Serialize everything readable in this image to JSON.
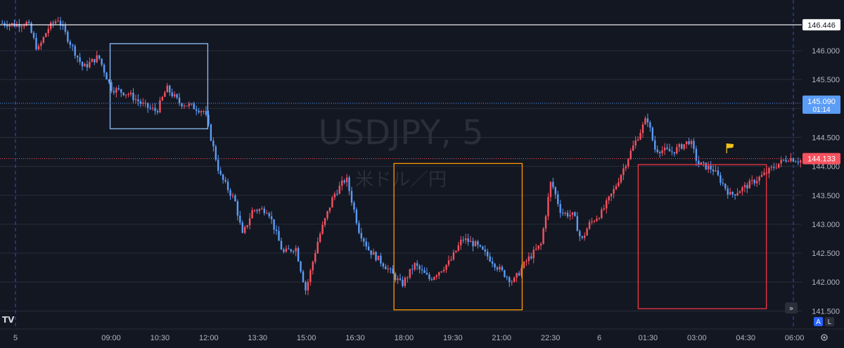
{
  "chart_data": {
    "type": "candlestick",
    "symbol": "USDJPY",
    "interval": "5",
    "subtitle": "米ドル／円",
    "y_ticks": [
      146.0,
      145.5,
      145.0,
      144.5,
      144.0,
      143.5,
      143.0,
      142.5,
      142.0,
      141.5
    ],
    "y_tick_labels": [
      "146.000",
      "145.500",
      "145.000",
      "144.500",
      "144.000",
      "143.500",
      "143.000",
      "142.500",
      "142.000",
      "141.500"
    ],
    "ylim": [
      141.45,
      146.7
    ],
    "x_tick_labels": [
      "5",
      "09:00",
      "10:30",
      "12:00",
      "13:30",
      "15:00",
      "16:30",
      "18:00",
      "19:30",
      "21:00",
      "22:30",
      "6",
      "01:30",
      "03:00",
      "04:30",
      "06:00"
    ],
    "horizontal_level": {
      "value": 146.446,
      "label": "146.446"
    },
    "current_price": {
      "value": 144.133,
      "label": "144.133"
    },
    "marker_price": {
      "value": 145.09,
      "label": "145.090",
      "countdown": "01:14"
    },
    "price_path": [
      [
        0,
        146.48
      ],
      [
        0.6,
        146.45
      ],
      [
        1.1,
        146.48
      ],
      [
        1.5,
        146.0
      ],
      [
        1.9,
        146.38
      ],
      [
        2.3,
        146.55
      ],
      [
        2.7,
        146.2
      ],
      [
        3.3,
        145.7
      ],
      [
        3.9,
        145.9
      ],
      [
        4.4,
        145.35
      ],
      [
        5.1,
        145.25
      ],
      [
        5.7,
        145.05
      ],
      [
        6.2,
        144.95
      ],
      [
        6.6,
        145.35
      ],
      [
        7.1,
        145.1
      ],
      [
        7.5,
        145.05
      ],
      [
        8.1,
        144.95
      ],
      [
        8.7,
        143.85
      ],
      [
        9.3,
        143.4
      ],
      [
        9.6,
        142.8
      ],
      [
        10.0,
        143.25
      ],
      [
        10.6,
        143.25
      ],
      [
        11.2,
        142.5
      ],
      [
        11.7,
        142.6
      ],
      [
        12.1,
        141.85
      ],
      [
        12.6,
        142.75
      ],
      [
        13.2,
        143.5
      ],
      [
        13.7,
        143.8
      ],
      [
        14.2,
        142.9
      ],
      [
        14.6,
        142.55
      ],
      [
        15.2,
        142.3
      ],
      [
        15.9,
        141.95
      ],
      [
        16.4,
        142.3
      ],
      [
        17.0,
        142.05
      ],
      [
        17.8,
        142.35
      ],
      [
        18.3,
        142.75
      ],
      [
        18.8,
        142.65
      ],
      [
        19.4,
        142.4
      ],
      [
        19.8,
        142.2
      ],
      [
        20.3,
        142.0
      ],
      [
        20.8,
        142.35
      ],
      [
        21.4,
        142.65
      ],
      [
        21.8,
        143.75
      ],
      [
        22.2,
        143.2
      ],
      [
        22.7,
        143.15
      ],
      [
        23.0,
        142.7
      ],
      [
        23.3,
        143.0
      ],
      [
        23.8,
        143.2
      ],
      [
        24.3,
        143.6
      ],
      [
        25.0,
        144.3
      ],
      [
        25.6,
        144.85
      ],
      [
        25.9,
        144.3
      ],
      [
        26.6,
        144.25
      ],
      [
        27.3,
        144.45
      ],
      [
        27.6,
        144.05
      ],
      [
        28.2,
        143.95
      ],
      [
        28.9,
        143.5
      ],
      [
        29.5,
        143.65
      ],
      [
        30.2,
        143.85
      ],
      [
        30.8,
        144.05
      ],
      [
        31.2,
        144.15
      ],
      [
        31.6,
        144.1
      ]
    ],
    "highlight_boxes": [
      {
        "t0": 3.1,
        "t1": 6.3,
        "y_top": 146.12,
        "y_bottom": 144.65,
        "color": "#90bff9"
      },
      {
        "t0": 12.4,
        "t1": 16.6,
        "y_top": 144.05,
        "y_bottom": 141.52,
        "color": "#ff9800"
      },
      {
        "t0": 20.4,
        "t1": 24.6,
        "y_top": 144.03,
        "y_bottom": 141.54,
        "color": "#f23645"
      }
    ],
    "flag_marker": {
      "t": 23.3,
      "y": 144.25
    },
    "colors": {
      "up": "#f7525f",
      "down": "#5b9cf6",
      "background": "#131722",
      "grid": "#2a2e39"
    }
  },
  "buttons": {
    "scale_a": "A",
    "scale_l": "L",
    "logo": "TV"
  }
}
